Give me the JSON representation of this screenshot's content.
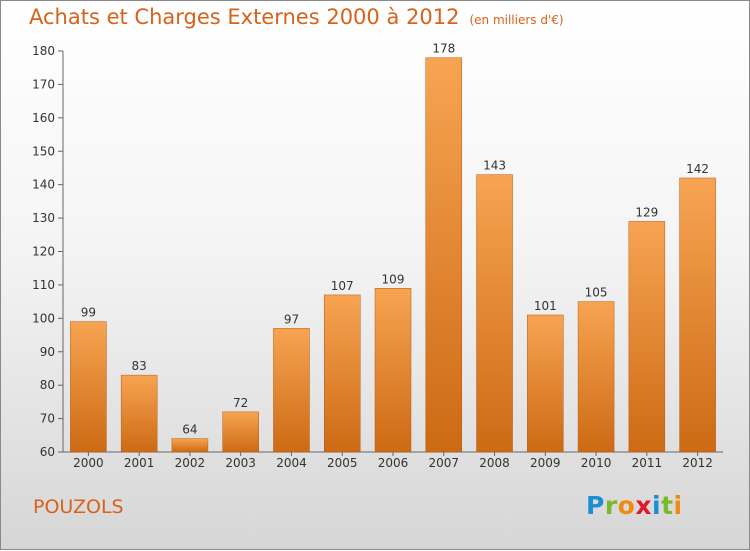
{
  "header": {
    "title": "Achats et Charges Externes 2000 à 2012",
    "unit": "(en milliers d'€)"
  },
  "commune": "POUZOLS",
  "logo": {
    "letters": [
      "P",
      "r",
      "o",
      "x",
      "i",
      "t",
      "i"
    ],
    "colors": [
      "#1a8fd6",
      "#7ab929",
      "#f08a12",
      "#e0182a",
      "#1a8fd6",
      "#7ab929",
      "#f08a12"
    ]
  },
  "colors": {
    "accent": "#d8621a",
    "bar_top": "#f7a452",
    "bar_bottom": "#cd6a14"
  },
  "chart_data": {
    "type": "bar",
    "categories": [
      "2000",
      "2001",
      "2002",
      "2003",
      "2004",
      "2005",
      "2006",
      "2007",
      "2008",
      "2009",
      "2010",
      "2011",
      "2012"
    ],
    "values": [
      99,
      83,
      64,
      72,
      97,
      107,
      109,
      178,
      143,
      101,
      105,
      129,
      142
    ],
    "ylim": [
      60,
      180
    ],
    "yticks": [
      60,
      70,
      80,
      90,
      100,
      110,
      120,
      130,
      140,
      150,
      160,
      170,
      180
    ],
    "grid": false,
    "title": "Achats et Charges Externes 2000 à 2012"
  }
}
